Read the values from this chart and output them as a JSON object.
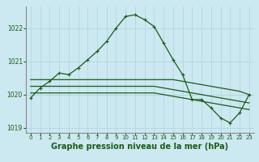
{
  "title": "Graphe pression niveau de la mer (hPa)",
  "bg_color": "#cce8f0",
  "grid_color": "#aad4e0",
  "line_color": "#1a5c1a",
  "x_hours": [
    0,
    1,
    2,
    3,
    4,
    5,
    6,
    7,
    8,
    9,
    10,
    11,
    12,
    13,
    14,
    15,
    16,
    17,
    18,
    19,
    20,
    21,
    22,
    23
  ],
  "main_line": [
    1019.9,
    1020.2,
    1020.4,
    1020.65,
    1020.6,
    1020.8,
    1021.05,
    1021.3,
    1021.6,
    1022.0,
    1022.35,
    1022.4,
    1022.25,
    1022.05,
    1021.55,
    1021.05,
    1020.6,
    1019.85,
    1019.85,
    1019.6,
    1019.3,
    1019.15,
    1019.45,
    1020.0
  ],
  "ref_line1": [
    1020.45,
    1020.45,
    1020.45,
    1020.45,
    1020.45,
    1020.45,
    1020.45,
    1020.45,
    1020.45,
    1020.45,
    1020.45,
    1020.45,
    1020.45,
    1020.45,
    1020.45,
    1020.45,
    1020.4,
    1020.35,
    1020.3,
    1020.25,
    1020.2,
    1020.15,
    1020.1,
    1020.0
  ],
  "ref_line2": [
    1020.25,
    1020.25,
    1020.25,
    1020.25,
    1020.25,
    1020.25,
    1020.25,
    1020.25,
    1020.25,
    1020.25,
    1020.25,
    1020.25,
    1020.25,
    1020.25,
    1020.2,
    1020.15,
    1020.1,
    1020.05,
    1020.0,
    1019.95,
    1019.9,
    1019.85,
    1019.8,
    1019.75
  ],
  "ref_line3": [
    1020.05,
    1020.05,
    1020.05,
    1020.05,
    1020.05,
    1020.05,
    1020.05,
    1020.05,
    1020.05,
    1020.05,
    1020.05,
    1020.05,
    1020.05,
    1020.05,
    1020.0,
    1019.95,
    1019.9,
    1019.85,
    1019.8,
    1019.75,
    1019.7,
    1019.65,
    1019.6,
    1019.55
  ],
  "ylim": [
    1018.85,
    1022.65
  ],
  "yticks": [
    1019,
    1020,
    1021,
    1022
  ],
  "title_fontsize": 7.0,
  "tick_fontsize": 5.5,
  "marker": "+"
}
